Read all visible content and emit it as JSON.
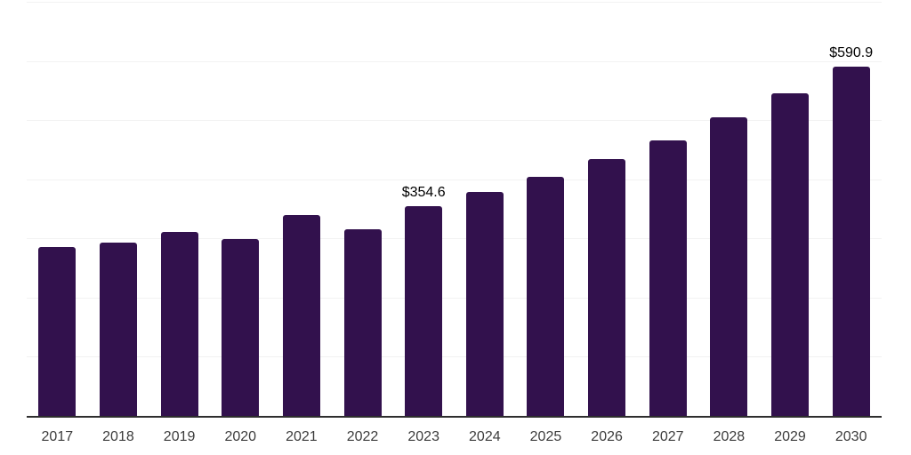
{
  "chart_data": {
    "type": "bar",
    "title": "",
    "xlabel": "",
    "ylabel": "",
    "categories": [
      "2017",
      "2018",
      "2019",
      "2020",
      "2021",
      "2022",
      "2023",
      "2024",
      "2025",
      "2026",
      "2027",
      "2028",
      "2029",
      "2030"
    ],
    "values": [
      286.0,
      292.5,
      310.9,
      298.5,
      338.8,
      314.9,
      354.6,
      378.0,
      404.4,
      434.2,
      466.4,
      504.7,
      545.0,
      590.9
    ],
    "data_labels": [
      "",
      "",
      "",
      "",
      "",
      "",
      "$354.6",
      "",
      "",
      "",
      "",
      "",
      "",
      "$590.9"
    ],
    "ylim": [
      0,
      700
    ],
    "grid_interval": 100,
    "grid": "horizontal",
    "legend": "none",
    "bar_color": "#32114d",
    "gridline_color": "#f2f2f2",
    "axis_line_color": "#2e2e2e",
    "tick_label_color": "#3c3c3c",
    "data_label_color": "#000000"
  }
}
